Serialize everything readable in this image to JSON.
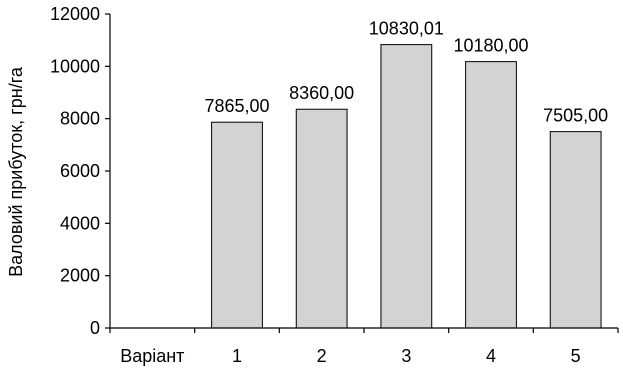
{
  "chart_data": {
    "type": "bar",
    "categories": [
      "Варіант",
      "1",
      "2",
      "3",
      "4",
      "5"
    ],
    "values": [
      null,
      7865.0,
      8360.0,
      10830.01,
      10180.0,
      7505.0
    ],
    "data_labels": [
      "",
      "7865,00",
      "8360,00",
      "10830,01",
      "10180,00",
      "7505,00"
    ],
    "title": "",
    "xlabel": "",
    "ylabel": "Валовий прибуток, грн/га",
    "ylim": [
      0,
      12000
    ],
    "yticks": [
      0,
      2000,
      4000,
      6000,
      8000,
      10000,
      12000
    ],
    "ytick_labels": [
      "0",
      "2000",
      "4000",
      "6000",
      "8000",
      "10000",
      "12000"
    ],
    "grid": false,
    "legend": "none",
    "bar_color": "#d3d3d3",
    "bar_edge_color": "#000000"
  }
}
